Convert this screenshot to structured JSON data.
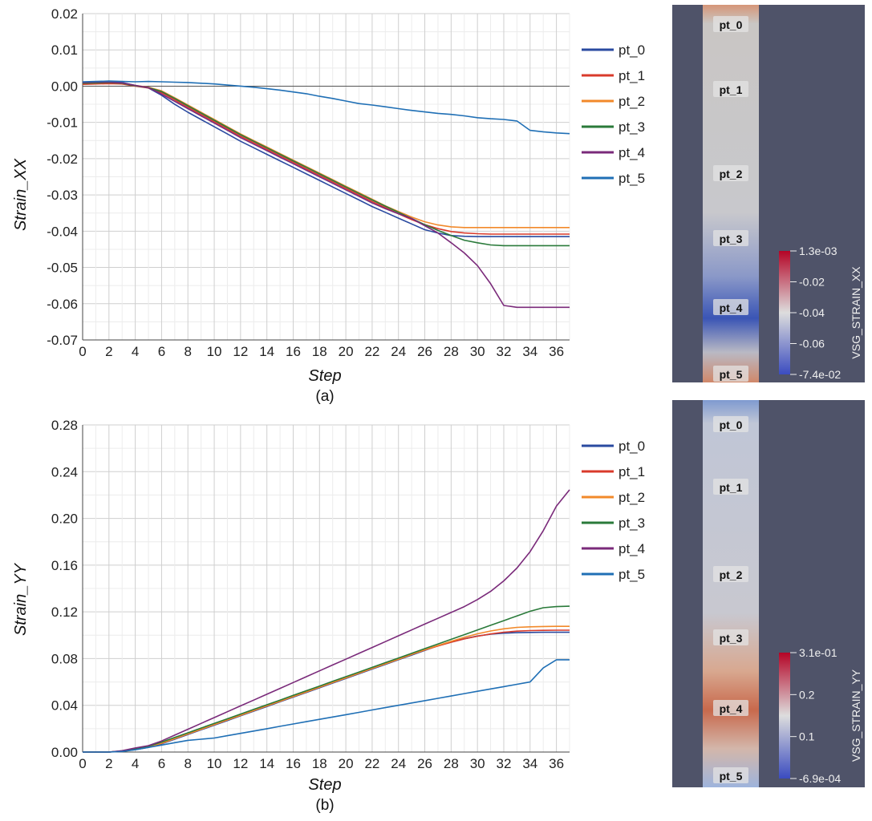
{
  "charts": [
    {
      "caption": "(a)",
      "chart_data": {
        "type": "line",
        "xlabel": "Step",
        "ylabel": "Strain_XX",
        "xlim": [
          0,
          37
        ],
        "ylim": [
          -0.07,
          0.02
        ],
        "xticks": [
          "0",
          "2",
          "4",
          "6",
          "8",
          "10",
          "12",
          "14",
          "16",
          "18",
          "20",
          "22",
          "24",
          "26",
          "28",
          "30",
          "32",
          "34",
          "36"
        ],
        "yticks": [
          "0.02",
          "0.01",
          "0.00",
          "-0.01",
          "-0.02",
          "-0.03",
          "-0.04",
          "-0.05",
          "-0.06",
          "-0.07"
        ],
        "grid": true,
        "legend_position": "right",
        "x": [
          0,
          1,
          2,
          3,
          4,
          5,
          6,
          7,
          8,
          9,
          10,
          11,
          12,
          13,
          14,
          15,
          16,
          17,
          18,
          19,
          20,
          21,
          22,
          23,
          24,
          25,
          26,
          27,
          28,
          29,
          30,
          31,
          32,
          33,
          34,
          35,
          36,
          37
        ],
        "series": [
          {
            "name": "pt_0",
            "color": "#2a4aa0",
            "values": [
              0.001,
              0.0012,
              0.0012,
              0.001,
              0.0002,
              -0.0005,
              -0.0025,
              -0.005,
              -0.0072,
              -0.0092,
              -0.0112,
              -0.0132,
              -0.0152,
              -0.017,
              -0.0188,
              -0.0206,
              -0.0224,
              -0.0242,
              -0.026,
              -0.0278,
              -0.0296,
              -0.0314,
              -0.0332,
              -0.0348,
              -0.0364,
              -0.038,
              -0.0396,
              -0.0405,
              -0.0412,
              -0.0414,
              -0.0415,
              -0.0415,
              -0.0415,
              -0.0415,
              -0.0415,
              -0.0415,
              -0.0415,
              -0.0415
            ]
          },
          {
            "name": "pt_1",
            "color": "#d93a2b",
            "values": [
              0.0005,
              0.0006,
              0.0007,
              0.0006,
              0.0,
              -0.0005,
              -0.0018,
              -0.0038,
              -0.0058,
              -0.0078,
              -0.0098,
              -0.0118,
              -0.0138,
              -0.0156,
              -0.0174,
              -0.0192,
              -0.021,
              -0.0228,
              -0.0246,
              -0.0264,
              -0.0282,
              -0.03,
              -0.0318,
              -0.0335,
              -0.0352,
              -0.0368,
              -0.0382,
              -0.0393,
              -0.0401,
              -0.0405,
              -0.0407,
              -0.0408,
              -0.0408,
              -0.0408,
              -0.0408,
              -0.0408,
              -0.0408,
              -0.0408
            ]
          },
          {
            "name": "pt_2",
            "color": "#f2892a",
            "values": [
              0.0008,
              0.0009,
              0.001,
              0.0008,
              0.0002,
              -0.0003,
              -0.0013,
              -0.0032,
              -0.0052,
              -0.0072,
              -0.0092,
              -0.0112,
              -0.0132,
              -0.015,
              -0.0168,
              -0.0186,
              -0.0204,
              -0.0222,
              -0.024,
              -0.0258,
              -0.0276,
              -0.0294,
              -0.0312,
              -0.033,
              -0.0346,
              -0.0361,
              -0.0374,
              -0.0383,
              -0.0388,
              -0.039,
              -0.039,
              -0.039,
              -0.039,
              -0.039,
              -0.039,
              -0.039,
              -0.039,
              -0.039
            ]
          },
          {
            "name": "pt_3",
            "color": "#2a7a3a",
            "values": [
              0.0008,
              0.0009,
              0.001,
              0.0008,
              0.0001,
              -0.0004,
              -0.0015,
              -0.0034,
              -0.0054,
              -0.0074,
              -0.0094,
              -0.0114,
              -0.0134,
              -0.0152,
              -0.017,
              -0.0188,
              -0.0206,
              -0.0224,
              -0.0242,
              -0.026,
              -0.0278,
              -0.0296,
              -0.0314,
              -0.0331,
              -0.0348,
              -0.0365,
              -0.0382,
              -0.0398,
              -0.0412,
              -0.0425,
              -0.0432,
              -0.0438,
              -0.044,
              -0.044,
              -0.044,
              -0.044,
              -0.044,
              -0.044
            ]
          },
          {
            "name": "pt_4",
            "color": "#7a2a7a",
            "values": [
              0.001,
              0.0011,
              0.0011,
              0.0009,
              0.0002,
              -0.0004,
              -0.0022,
              -0.0042,
              -0.0062,
              -0.0082,
              -0.0102,
              -0.0122,
              -0.0142,
              -0.016,
              -0.0178,
              -0.0196,
              -0.0214,
              -0.0232,
              -0.025,
              -0.0268,
              -0.0286,
              -0.0304,
              -0.0322,
              -0.0338,
              -0.0352,
              -0.0365,
              -0.0385,
              -0.0405,
              -0.0432,
              -0.046,
              -0.0495,
              -0.0545,
              -0.0605,
              -0.061,
              -0.061,
              -0.061,
              -0.061,
              -0.061
            ]
          },
          {
            "name": "pt_5",
            "color": "#1f6fb5",
            "values": [
              0.0012,
              0.0013,
              0.0014,
              0.0013,
              0.0012,
              0.0013,
              0.0012,
              0.0011,
              0.001,
              0.0008,
              0.0006,
              0.0003,
              0.0,
              -0.0003,
              -0.0007,
              -0.0011,
              -0.0016,
              -0.0021,
              -0.0028,
              -0.0034,
              -0.0041,
              -0.0048,
              -0.0052,
              -0.0057,
              -0.0062,
              -0.0067,
              -0.0071,
              -0.0075,
              -0.0078,
              -0.0082,
              -0.0087,
              -0.009,
              -0.0092,
              -0.0096,
              -0.0122,
              -0.0126,
              -0.0129,
              -0.0131
            ]
          }
        ]
      },
      "colorbar": {
        "title": "VSG_STRAIN_XX",
        "labels": [
          "1.3e-03",
          "-0.02",
          "-0.04",
          "-0.06",
          "-7.4e-02"
        ],
        "min_color": "#3b4cc0",
        "mid_color": "#dddddd",
        "max_color": "#b40426"
      },
      "specimen_labels": [
        "pt_0",
        "pt_1",
        "pt_2",
        "pt_3",
        "pt_4",
        "pt_5"
      ],
      "specimen_colors": {
        "background": "#4f5369",
        "body": "#c9c6c4",
        "top": "#d89a7a",
        "bottom": "#d0886a",
        "hotspot": "#3a55b5"
      }
    },
    {
      "caption": "(b)",
      "chart_data": {
        "type": "line",
        "xlabel": "Step",
        "ylabel": "Strain_YY",
        "xlim": [
          0,
          37
        ],
        "ylim": [
          0,
          0.28
        ],
        "xticks": [
          "0",
          "2",
          "4",
          "6",
          "8",
          "10",
          "12",
          "14",
          "16",
          "18",
          "20",
          "22",
          "24",
          "26",
          "28",
          "30",
          "32",
          "34",
          "36"
        ],
        "yticks": [
          "0.28",
          "0.24",
          "0.20",
          "0.16",
          "0.12",
          "0.08",
          "0.04",
          "0.00"
        ],
        "grid": true,
        "legend_position": "right",
        "x": [
          0,
          1,
          2,
          3,
          4,
          5,
          6,
          7,
          8,
          9,
          10,
          11,
          12,
          13,
          14,
          15,
          16,
          17,
          18,
          19,
          20,
          21,
          22,
          23,
          24,
          25,
          26,
          27,
          28,
          29,
          30,
          31,
          32,
          33,
          34,
          35,
          36,
          37
        ],
        "series": [
          {
            "name": "pt_0",
            "color": "#2a4aa0",
            "values": [
              0.0,
              0.0,
              0.0,
              0.0008,
              0.002,
              0.004,
              0.007,
              0.011,
              0.015,
              0.019,
              0.023,
              0.027,
              0.031,
              0.035,
              0.039,
              0.043,
              0.047,
              0.051,
              0.055,
              0.059,
              0.063,
              0.067,
              0.071,
              0.075,
              0.079,
              0.083,
              0.087,
              0.091,
              0.094,
              0.097,
              0.0993,
              0.1009,
              0.1018,
              0.1022,
              0.1024,
              0.1025,
              0.1025,
              0.1025
            ]
          },
          {
            "name": "pt_1",
            "color": "#d93a2b",
            "values": [
              0.0,
              0.0,
              0.0,
              0.0008,
              0.0025,
              0.0045,
              0.0075,
              0.0115,
              0.0155,
              0.0195,
              0.0235,
              0.0275,
              0.0315,
              0.0355,
              0.0395,
              0.0435,
              0.0475,
              0.0515,
              0.0555,
              0.0595,
              0.0635,
              0.0675,
              0.0715,
              0.0755,
              0.0795,
              0.0835,
              0.0873,
              0.0908,
              0.094,
              0.0968,
              0.0992,
              0.1011,
              0.1026,
              0.1035,
              0.104,
              0.1042,
              0.1043,
              0.1043
            ]
          },
          {
            "name": "pt_2",
            "color": "#f2892a",
            "values": [
              0.0,
              0.0,
              0.0,
              0.0008,
              0.0025,
              0.0045,
              0.0075,
              0.0115,
              0.0155,
              0.0195,
              0.0235,
              0.0275,
              0.0315,
              0.0355,
              0.0395,
              0.0435,
              0.0475,
              0.0515,
              0.0555,
              0.0595,
              0.0635,
              0.0675,
              0.0715,
              0.0755,
              0.0795,
              0.0835,
              0.0875,
              0.0912,
              0.0948,
              0.0982,
              0.1012,
              0.1036,
              0.1055,
              0.1067,
              0.1072,
              0.1075,
              0.1076,
              0.1076
            ]
          },
          {
            "name": "pt_3",
            "color": "#2a7a3a",
            "values": [
              0.0,
              0.0,
              0.0,
              0.001,
              0.003,
              0.005,
              0.0085,
              0.0125,
              0.0165,
              0.0205,
              0.0245,
              0.0285,
              0.0325,
              0.0365,
              0.0405,
              0.0445,
              0.0485,
              0.0525,
              0.0565,
              0.0605,
              0.0645,
              0.0685,
              0.0725,
              0.0765,
              0.0805,
              0.0845,
              0.0885,
              0.0925,
              0.0965,
              0.1005,
              0.1045,
              0.1085,
              0.1125,
              0.1165,
              0.1205,
              0.1235,
              0.1245,
              0.1248
            ]
          },
          {
            "name": "pt_4",
            "color": "#7a2a7a",
            "values": [
              0.0,
              0.0,
              0.0,
              0.0012,
              0.0035,
              0.0055,
              0.0095,
              0.0145,
              0.0195,
              0.0245,
              0.0295,
              0.0345,
              0.0395,
              0.0445,
              0.0495,
              0.0545,
              0.0595,
              0.0645,
              0.0695,
              0.0745,
              0.0795,
              0.0845,
              0.0895,
              0.0945,
              0.0995,
              0.1045,
              0.1095,
              0.1145,
              0.1195,
              0.1245,
              0.1305,
              0.1375,
              0.1465,
              0.1575,
              0.1715,
              0.1895,
              0.2105,
              0.2245
            ]
          },
          {
            "name": "pt_5",
            "color": "#1f6fb5",
            "values": [
              0.0,
              0.0,
              0.0,
              0.0005,
              0.002,
              0.004,
              0.006,
              0.008,
              0.01,
              0.011,
              0.012,
              0.014,
              0.016,
              0.018,
              0.02,
              0.022,
              0.024,
              0.026,
              0.028,
              0.03,
              0.032,
              0.034,
              0.036,
              0.038,
              0.04,
              0.042,
              0.044,
              0.046,
              0.048,
              0.05,
              0.052,
              0.054,
              0.056,
              0.058,
              0.06,
              0.072,
              0.079,
              0.079
            ]
          }
        ]
      },
      "colorbar": {
        "title": "VSG_STRAIN_YY",
        "labels": [
          "3.1e-01",
          "0.2",
          "0.1",
          "-6.9e-04"
        ],
        "min_color": "#3b4cc0",
        "mid_color": "#dddddd",
        "max_color": "#b40426"
      },
      "specimen_labels": [
        "pt_0",
        "pt_1",
        "pt_2",
        "pt_3",
        "pt_4",
        "pt_5"
      ],
      "specimen_colors": {
        "background": "#4f5369",
        "body": "#c4c8d4",
        "top": "#7f9ad0",
        "bottom": "#9eb4dc",
        "hotspot": "#c8694c"
      }
    }
  ]
}
